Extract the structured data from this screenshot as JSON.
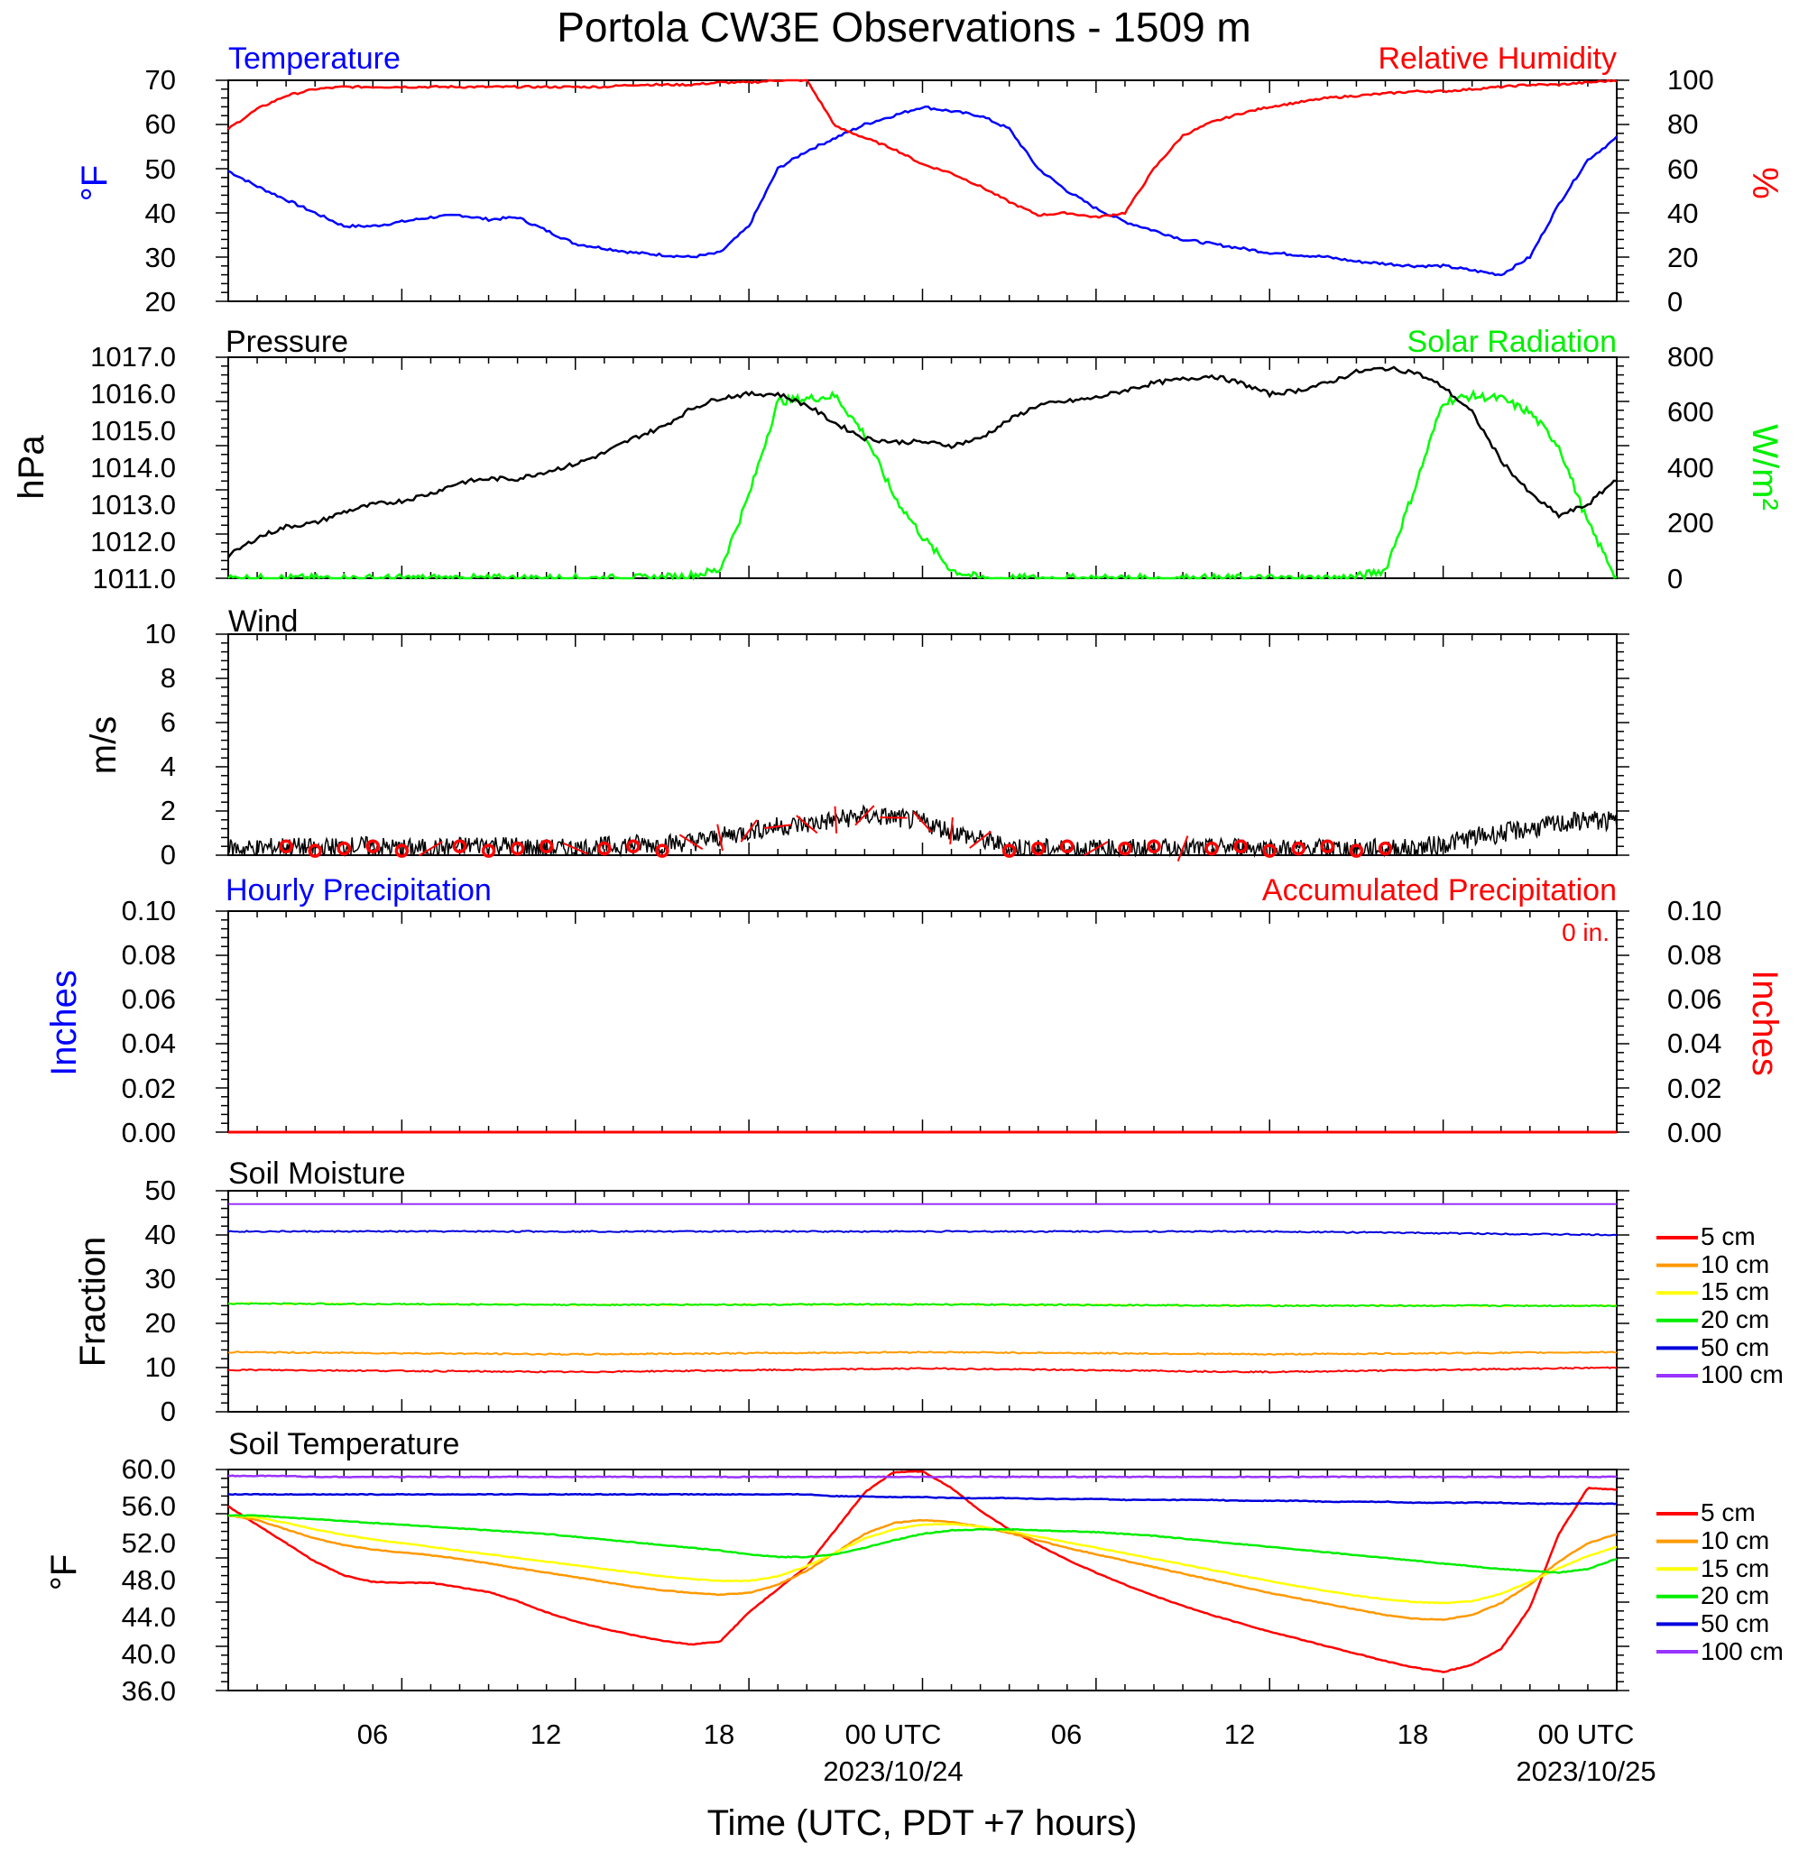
{
  "title": "Portola CW3E Observations - 1509 m",
  "xlabel": "Time (UTC, PDT +7 hours)",
  "x_ticks": [
    {
      "h": 6,
      "label": "06"
    },
    {
      "h": 12,
      "label": "12"
    },
    {
      "h": 18,
      "label": "18"
    },
    {
      "h": 24,
      "label": "00 UTC",
      "date": "2023/10/24"
    },
    {
      "h": 30,
      "label": "06"
    },
    {
      "h": 36,
      "label": "12"
    },
    {
      "h": 42,
      "label": "18"
    },
    {
      "h": 48,
      "label": "00 UTC",
      "date": "2023/10/25"
    }
  ],
  "colors": {
    "temperature": "#0000ff",
    "humidity": "#ff0000",
    "pressure": "#000000",
    "solar": "#00ff00",
    "wind": "#000000",
    "wind_barb": "#ff0000",
    "precip_hourly": "#0000ff",
    "precip_accum": "#ff0000",
    "depth_5": "#ff0000",
    "depth_10": "#ff9900",
    "depth_15": "#ffff00",
    "depth_20": "#00ee00",
    "depth_50": "#0000dd",
    "depth_100": "#9933ff"
  },
  "panels": {
    "temp_rh": {
      "left_title": "Temperature",
      "right_title": "Relative Humidity",
      "left_unit": "°F",
      "right_unit": "%",
      "left_ticks": [
        "20",
        "30",
        "40",
        "50",
        "60",
        "70"
      ],
      "right_ticks": [
        "0",
        "20",
        "40",
        "60",
        "80",
        "100"
      ]
    },
    "pressure": {
      "left_title": "Pressure",
      "right_title": "Solar Radiation",
      "left_unit": "hPa",
      "right_unit": "W/m²",
      "left_ticks": [
        "1011.0",
        "1012.0",
        "1013.0",
        "1014.0",
        "1015.0",
        "1016.0",
        "1017.0"
      ],
      "right_ticks": [
        "0",
        "200",
        "400",
        "600",
        "800"
      ]
    },
    "wind": {
      "left_title": "Wind",
      "left_unit": "m/s",
      "left_ticks": [
        "0",
        "2",
        "4",
        "6",
        "8",
        "10"
      ]
    },
    "precip": {
      "left_title": "Hourly Precipitation",
      "right_title": "Accumulated Precipitation",
      "total_label": "0 in.",
      "left_unit": "Inches",
      "right_unit": "Inches",
      "left_ticks": [
        "0.00",
        "0.02",
        "0.04",
        "0.06",
        "0.08",
        "0.10"
      ],
      "right_ticks": [
        "0.00",
        "0.02",
        "0.04",
        "0.06",
        "0.08",
        "0.10"
      ]
    },
    "soil_moisture": {
      "left_title": "Soil Moisture",
      "left_unit": "Fraction",
      "left_ticks": [
        "0",
        "10",
        "20",
        "30",
        "40",
        "50"
      ]
    },
    "soil_temp": {
      "left_title": "Soil Temperature",
      "left_unit": "°F",
      "left_ticks": [
        "36.0",
        "40.0",
        "44.0",
        "48.0",
        "52.0",
        "56.0",
        "60.0"
      ]
    }
  },
  "soil_legend": [
    "5 cm",
    "10 cm",
    "15 cm",
    "20 cm",
    "50 cm",
    "100 cm"
  ],
  "chart_data": [
    {
      "type": "line",
      "x_units": "hours since 2023/10/23 00 UTC",
      "x": [
        0,
        1,
        2,
        3,
        4,
        5,
        6,
        7,
        8,
        9,
        10,
        11,
        12,
        13,
        14,
        15,
        16,
        17,
        18,
        19,
        20,
        21,
        22,
        23,
        24,
        25,
        26,
        27,
        28,
        29,
        30,
        31,
        32,
        33,
        34,
        35,
        36,
        37,
        38,
        39,
        40,
        41,
        42,
        43,
        44,
        45,
        46,
        47,
        48
      ],
      "xlim": [
        0,
        48
      ],
      "series": [
        {
          "name": "Temperature",
          "axis": "left",
          "ylim": [
            20,
            70
          ],
          "values": [
            49.5,
            46,
            43,
            40,
            37,
            37,
            38,
            39,
            39.5,
            38.5,
            39,
            36,
            33,
            32,
            31,
            30.5,
            30,
            31,
            37,
            50,
            54,
            57,
            60,
            62,
            64,
            63,
            62,
            59,
            50,
            45,
            41,
            38,
            36,
            34,
            33,
            32,
            31,
            30.5,
            30,
            29,
            28.5,
            28,
            28,
            27,
            26,
            30,
            42,
            52,
            57
          ]
        },
        {
          "name": "Relative Humidity",
          "axis": "right",
          "ylim": [
            0,
            100
          ],
          "values": [
            78,
            87,
            93,
            96,
            97,
            97,
            97,
            97,
            97,
            97,
            97,
            97,
            97,
            97,
            98,
            98,
            98,
            99,
            99,
            100,
            100,
            79,
            74,
            69,
            62,
            58,
            52,
            45,
            39,
            40,
            38,
            40,
            60,
            75,
            81,
            85,
            88,
            90,
            92,
            93,
            94,
            95,
            95,
            96,
            97,
            98,
            98,
            99,
            100
          ]
        }
      ]
    },
    {
      "type": "line",
      "x_units": "hours since 2023/10/23 00 UTC",
      "x": [
        0,
        1,
        2,
        3,
        4,
        5,
        6,
        7,
        8,
        9,
        10,
        11,
        12,
        13,
        14,
        15,
        16,
        17,
        18,
        19,
        20,
        21,
        22,
        23,
        24,
        25,
        26,
        27,
        28,
        29,
        30,
        31,
        32,
        33,
        34,
        35,
        36,
        37,
        38,
        39,
        40,
        41,
        42,
        43,
        44,
        45,
        46,
        47,
        48
      ],
      "xlim": [
        0,
        48
      ],
      "series": [
        {
          "name": "Pressure",
          "axis": "left",
          "ylim": [
            1011,
            1017
          ],
          "values": [
            1011.6,
            1012.1,
            1012.4,
            1012.5,
            1012.8,
            1013,
            1013.1,
            1013.3,
            1013.6,
            1013.7,
            1013.7,
            1013.9,
            1014.1,
            1014.4,
            1014.8,
            1015.1,
            1015.6,
            1015.9,
            1016,
            1016,
            1015.7,
            1015.2,
            1014.8,
            1014.7,
            1014.7,
            1014.6,
            1014.8,
            1015.3,
            1015.7,
            1015.8,
            1015.9,
            1016.1,
            1016.3,
            1016.4,
            1016.5,
            1016.3,
            1016,
            1016.1,
            1016.3,
            1016.6,
            1016.7,
            1016.6,
            1016.2,
            1015.5,
            1014.2,
            1013.3,
            1012.7,
            1013,
            1013.7
          ]
        },
        {
          "name": "Solar Radiation",
          "axis": "right",
          "ylim": [
            0,
            800
          ],
          "values": [
            0,
            0,
            0,
            0,
            0,
            0,
            0,
            0,
            0,
            0,
            0,
            0,
            0,
            0,
            0,
            2,
            10,
            30,
            300,
            640,
            650,
            660,
            520,
            300,
            150,
            30,
            0,
            0,
            0,
            0,
            0,
            0,
            0,
            0,
            0,
            0,
            0,
            0,
            0,
            5,
            30,
            320,
            640,
            660,
            650,
            600,
            480,
            200,
            0
          ]
        }
      ]
    },
    {
      "type": "line",
      "x_units": "hours since 2023/10/23 00 UTC",
      "x": [
        0,
        1,
        2,
        3,
        4,
        5,
        6,
        7,
        8,
        9,
        10,
        11,
        12,
        13,
        14,
        15,
        16,
        17,
        18,
        19,
        20,
        21,
        22,
        23,
        24,
        25,
        26,
        27,
        28,
        29,
        30,
        31,
        32,
        33,
        34,
        35,
        36,
        37,
        38,
        39,
        40,
        41,
        42,
        43,
        44,
        45,
        46,
        47,
        48
      ],
      "xlim": [
        0,
        48
      ],
      "series": [
        {
          "name": "Wind",
          "axis": "left",
          "ylim": [
            0,
            10
          ],
          "values": [
            0.3,
            0.3,
            0.4,
            0.3,
            0.4,
            0.4,
            0.3,
            0.3,
            0.4,
            0.5,
            0.4,
            0.3,
            0.3,
            0.4,
            0.5,
            0.5,
            0.6,
            0.8,
            1.1,
            1.3,
            1.4,
            1.6,
            1.8,
            1.7,
            1.5,
            1.1,
            0.7,
            0.4,
            0.3,
            0.3,
            0.3,
            0.3,
            0.3,
            0.3,
            0.3,
            0.4,
            0.3,
            0.3,
            0.3,
            0.3,
            0.3,
            0.3,
            0.5,
            0.8,
            1.0,
            1.2,
            1.4,
            1.6,
            1.5
          ]
        }
      ]
    },
    {
      "type": "line",
      "x_units": "hours since 2023/10/23 00 UTC",
      "x": [
        0,
        48
      ],
      "xlim": [
        0,
        48
      ],
      "series": [
        {
          "name": "Hourly Precipitation",
          "axis": "left",
          "ylim": [
            0,
            0.1
          ],
          "values": [
            0,
            0
          ]
        },
        {
          "name": "Accumulated Precipitation",
          "axis": "right",
          "ylim": [
            0,
            0.1
          ],
          "values": [
            0,
            0
          ]
        }
      ]
    },
    {
      "type": "line",
      "x_units": "hours since 2023/10/23 00 UTC",
      "x": [
        0,
        12,
        24,
        36,
        48
      ],
      "xlim": [
        0,
        48
      ],
      "ylim": [
        0,
        50
      ],
      "series": [
        {
          "name": "5 cm",
          "values": [
            9.5,
            9,
            9.8,
            9,
            10
          ]
        },
        {
          "name": "10 cm",
          "values": [
            13.5,
            13,
            13.5,
            13,
            13.5
          ]
        },
        {
          "name": "15 cm",
          "values": [
            24.5,
            24.2,
            24.3,
            24,
            24
          ]
        },
        {
          "name": "20 cm",
          "values": [
            24.5,
            24.2,
            24.3,
            24,
            24
          ]
        },
        {
          "name": "50 cm",
          "values": [
            40.8,
            40.8,
            40.8,
            40.8,
            40
          ]
        },
        {
          "name": "100 cm",
          "values": [
            47,
            47,
            47,
            47,
            47
          ]
        }
      ]
    },
    {
      "type": "line",
      "x_units": "hours since 2023/10/23 00 UTC",
      "x": [
        0,
        1,
        2,
        3,
        4,
        5,
        6,
        7,
        8,
        9,
        10,
        11,
        12,
        13,
        14,
        15,
        16,
        17,
        18,
        19,
        20,
        21,
        22,
        23,
        24,
        25,
        26,
        27,
        28,
        29,
        30,
        31,
        32,
        33,
        34,
        35,
        36,
        37,
        38,
        39,
        40,
        41,
        42,
        43,
        44,
        45,
        46,
        47,
        48
      ],
      "xlim": [
        0,
        48
      ],
      "ylim": [
        36,
        60
      ],
      "series": [
        {
          "name": "5 cm",
          "values": [
            56,
            54,
            52,
            50,
            48.5,
            47.8,
            47.7,
            47.7,
            47.2,
            46.7,
            45.7,
            44.5,
            43.5,
            42.7,
            42,
            41.4,
            41,
            41.3,
            44.5,
            47,
            49.5,
            53.5,
            57.5,
            59.7,
            59.8,
            58,
            55.5,
            53.5,
            51.8,
            50.2,
            48.8,
            47.5,
            46.3,
            45.2,
            44.2,
            43.3,
            42.4,
            41.6,
            40.8,
            40,
            39.2,
            38.5,
            38,
            38.8,
            40.5,
            45,
            53,
            58,
            57.8
          ]
        },
        {
          "name": "10 cm",
          "values": [
            55,
            54.5,
            53.5,
            52.5,
            51.8,
            51.3,
            51,
            50.7,
            50.3,
            49.8,
            49.3,
            48.8,
            48.3,
            47.8,
            47.3,
            46.9,
            46.6,
            46.4,
            46.6,
            47.5,
            49,
            51,
            53,
            54.2,
            54.5,
            54.3,
            53.8,
            53.1,
            52.3,
            51.5,
            50.8,
            50.1,
            49.4,
            48.7,
            48,
            47.3,
            46.6,
            46,
            45.4,
            44.8,
            44.2,
            43.8,
            43.7,
            44.2,
            45.5,
            47.5,
            50,
            52,
            53
          ]
        },
        {
          "name": "15 cm",
          "values": [
            55,
            54.8,
            54.2,
            53.5,
            52.9,
            52.4,
            52,
            51.6,
            51.2,
            50.8,
            50.4,
            50,
            49.6,
            49.2,
            48.8,
            48.4,
            48.1,
            47.9,
            47.9,
            48.4,
            49.5,
            51,
            52.5,
            53.5,
            54,
            54.1,
            53.8,
            53.3,
            52.7,
            52.1,
            51.5,
            50.9,
            50.3,
            49.7,
            49.1,
            48.5,
            47.9,
            47.3,
            46.8,
            46.3,
            45.9,
            45.6,
            45.5,
            45.7,
            46.5,
            47.8,
            49.3,
            50.6,
            51.6
          ]
        },
        {
          "name": "20 cm",
          "values": [
            55,
            55,
            54.8,
            54.6,
            54.4,
            54.2,
            54,
            53.8,
            53.6,
            53.4,
            53.2,
            53,
            52.7,
            52.4,
            52.1,
            51.8,
            51.5,
            51.2,
            50.8,
            50.5,
            50.5,
            50.8,
            51.5,
            52.3,
            53,
            53.4,
            53.5,
            53.5,
            53.4,
            53.3,
            53.2,
            53,
            52.8,
            52.5,
            52.2,
            51.9,
            51.6,
            51.3,
            51,
            50.7,
            50.4,
            50.1,
            49.8,
            49.5,
            49.2,
            49,
            48.8,
            49.2,
            50.3
          ]
        },
        {
          "name": "50 cm",
          "values": [
            57.3,
            57.3,
            57.3,
            57.3,
            57.3,
            57.3,
            57.3,
            57.3,
            57.3,
            57.3,
            57.3,
            57.3,
            57.3,
            57.3,
            57.3,
            57.3,
            57.3,
            57.3,
            57.3,
            57.3,
            57.3,
            57.1,
            57.1,
            57,
            57,
            56.9,
            56.9,
            56.9,
            56.8,
            56.8,
            56.8,
            56.7,
            56.7,
            56.7,
            56.7,
            56.6,
            56.6,
            56.6,
            56.5,
            56.5,
            56.5,
            56.4,
            56.4,
            56.4,
            56.4,
            56.3,
            56.3,
            56.3,
            56.3
          ]
        },
        {
          "name": "100 cm",
          "values": [
            59.3,
            59.3,
            59.3,
            59.2,
            59.2,
            59.2,
            59.2,
            59.2,
            59.2,
            59.2,
            59.2,
            59.2,
            59.2,
            59.2,
            59.2,
            59.2,
            59.2,
            59.2,
            59.2,
            59.2,
            59.2,
            59.2,
            59.2,
            59.2,
            59.2,
            59.2,
            59.2,
            59.2,
            59.2,
            59.2,
            59.2,
            59.2,
            59.2,
            59.2,
            59.2,
            59.2,
            59.2,
            59.2,
            59.2,
            59.2,
            59.2,
            59.2,
            59.2,
            59.2,
            59.2,
            59.2,
            59.2,
            59.2,
            59.2
          ]
        }
      ]
    }
  ]
}
